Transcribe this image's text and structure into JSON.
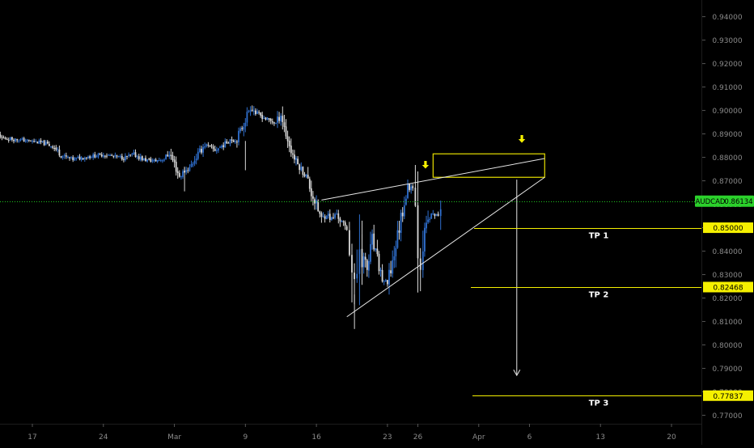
{
  "colors": {
    "background": "#000000",
    "candle_up": "#2f6fce",
    "candle_down": "#d9d9d9",
    "trendline": "#e6e6e6",
    "target_line": "#f5f000",
    "zone_border": "#e8e000",
    "arrow": "#f5f000",
    "price_line": "#1ec41e",
    "axis_text": "#8a8a8a",
    "symbol_tag_bg": "#2bd12b",
    "target_tag_bg": "#f5f000",
    "tag_text": "#000000"
  },
  "chart_data": {
    "type": "candlestick",
    "symbol": "AUDCAD",
    "last_price": 0.86134,
    "y_axis": {
      "range": [
        0.7657,
        0.9447
      ],
      "ticks": [
        "0.94000",
        "0.93000",
        "0.92000",
        "0.91000",
        "0.90000",
        "0.89000",
        "0.88000",
        "0.87000",
        "0.86000",
        "0.85000",
        "0.84000",
        "0.83000",
        "0.82000",
        "0.81000",
        "0.80000",
        "0.79000",
        "0.78000",
        "0.77000"
      ]
    },
    "x_axis": {
      "ticks": [
        {
          "label": "17",
          "date": "2020-02-17"
        },
        {
          "label": "24",
          "date": "2020-02-24"
        },
        {
          "label": "Mar",
          "date": "2020-03-02"
        },
        {
          "label": "9",
          "date": "2020-03-09"
        },
        {
          "label": "16",
          "date": "2020-03-16"
        },
        {
          "label": "23",
          "date": "2020-03-23"
        },
        {
          "label": "26",
          "date": "2020-03-26"
        },
        {
          "label": "Apr",
          "date": "2020-04-01"
        },
        {
          "label": "6",
          "date": "2020-04-06"
        },
        {
          "label": "13",
          "date": "2020-04-13"
        },
        {
          "label": "20",
          "date": "2020-04-20"
        }
      ]
    },
    "price_path": [
      [
        "2020-02-10 00:00",
        0.893
      ],
      [
        "2020-02-11 00:00",
        0.8912
      ],
      [
        "2020-02-12 00:00",
        0.8922
      ],
      [
        "2020-02-13 00:00",
        0.8905
      ],
      [
        "2020-02-14 00:00",
        0.8882
      ],
      [
        "2020-02-16 00:00",
        0.8874
      ],
      [
        "2020-02-18 00:00",
        0.8862
      ],
      [
        "2020-02-19 00:00",
        0.8848
      ],
      [
        "2020-02-20 00:00",
        0.8805
      ],
      [
        "2020-02-21 00:00",
        0.8792
      ],
      [
        "2020-02-22 00:00",
        0.88
      ],
      [
        "2020-02-24 00:00",
        0.8812
      ],
      [
        "2020-02-26 00:00",
        0.8797
      ],
      [
        "2020-02-27 00:00",
        0.8812
      ],
      [
        "2020-02-28 00:00",
        0.879
      ],
      [
        "2020-02-29 00:00",
        0.8785
      ],
      [
        "2020-03-01 00:00",
        0.8793
      ],
      [
        "2020-03-01 12:00",
        0.8818
      ],
      [
        "2020-03-02 00:00",
        0.8772
      ],
      [
        "2020-03-02 12:00",
        0.8718
      ],
      [
        "2020-03-03 00:00",
        0.8742
      ],
      [
        "2020-03-03 12:00",
        0.8755
      ],
      [
        "2020-03-04 00:00",
        0.8792
      ],
      [
        "2020-03-05 00:00",
        0.8855
      ],
      [
        "2020-03-06 00:00",
        0.883
      ],
      [
        "2020-03-07 00:00",
        0.8858
      ],
      [
        "2020-03-07 12:00",
        0.888
      ],
      [
        "2020-03-08 00:00",
        0.887
      ],
      [
        "2020-03-08 12:00",
        0.8912
      ],
      [
        "2020-03-09 00:00",
        0.8962
      ],
      [
        "2020-03-09 12:00",
        0.902
      ],
      [
        "2020-03-10 00:00",
        0.899
      ],
      [
        "2020-03-10 12:00",
        0.8978
      ],
      [
        "2020-03-11 00:00",
        0.8965
      ],
      [
        "2020-03-12 00:00",
        0.8945
      ],
      [
        "2020-03-12 12:00",
        0.8985
      ],
      [
        "2020-03-13 00:00",
        0.89
      ],
      [
        "2020-03-13 12:00",
        0.8828
      ],
      [
        "2020-03-14 00:00",
        0.878
      ],
      [
        "2020-03-15 00:00",
        0.872
      ],
      [
        "2020-03-15 12:00",
        0.865
      ],
      [
        "2020-03-16 00:00",
        0.8595
      ],
      [
        "2020-03-16 12:00",
        0.8535
      ],
      [
        "2020-03-17 00:00",
        0.856
      ],
      [
        "2020-03-17 12:00",
        0.8535
      ],
      [
        "2020-03-18 00:00",
        0.856
      ],
      [
        "2020-03-18 12:00",
        0.852
      ],
      [
        "2020-03-19 00:00",
        0.8495
      ],
      [
        "2020-03-19 06:00",
        0.843
      ],
      [
        "2020-03-19 12:00",
        0.8318
      ],
      [
        "2020-03-19 18:00",
        0.8215
      ],
      [
        "2020-03-20 00:00",
        0.8305
      ],
      [
        "2020-03-20 06:00",
        0.846
      ],
      [
        "2020-03-20 12:00",
        0.839
      ],
      [
        "2020-03-21 00:00",
        0.832
      ],
      [
        "2020-03-21 12:00",
        0.844
      ],
      [
        "2020-03-22 00:00",
        0.836
      ],
      [
        "2020-03-22 12:00",
        0.828
      ],
      [
        "2020-03-23 00:00",
        0.8255
      ],
      [
        "2020-03-23 12:00",
        0.8355
      ],
      [
        "2020-03-24 00:00",
        0.8465
      ],
      [
        "2020-03-24 12:00",
        0.8585
      ],
      [
        "2020-03-25 00:00",
        0.8665
      ],
      [
        "2020-03-25 12:00",
        0.868
      ],
      [
        "2020-03-25 18:00",
        0.859
      ],
      [
        "2020-03-26 00:00",
        0.845
      ],
      [
        "2020-03-26 06:00",
        0.8375
      ],
      [
        "2020-03-26 12:00",
        0.845
      ],
      [
        "2020-03-27 00:00",
        0.853
      ],
      [
        "2020-03-27 12:00",
        0.856
      ],
      [
        "2020-03-28 00:00",
        0.8545
      ],
      [
        "2020-03-28 06:00",
        0.8615
      ]
    ],
    "annotations": {
      "resistance_zone": {
        "from": "2020-03-27 12:00",
        "to": "2020-04-07 12:00",
        "price_low": 0.8715,
        "price_high": 0.8815
      },
      "upper_trendline": {
        "from": [
          "2020-03-16 12:00",
          0.8618
        ],
        "to": [
          "2020-04-07 12:00",
          0.8795
        ]
      },
      "lower_trendline": {
        "from": [
          "2020-03-19 00:00",
          0.812
        ],
        "to": [
          "2020-04-07 12:00",
          0.8715
        ]
      },
      "projection_arrow": {
        "date": "2020-04-04 18:00",
        "from_price": 0.8705,
        "to_price": 0.787
      },
      "down_arrows": [
        {
          "date": "2020-03-26 18:00",
          "price": 0.8785
        },
        {
          "date": "2020-04-05 06:00",
          "price": 0.8895
        }
      ],
      "targets": [
        {
          "label": "TP 1",
          "price": 0.85,
          "price_label": "0.85000"
        },
        {
          "label": "TP 2",
          "price": 0.82468,
          "price_label": "0.82468"
        },
        {
          "label": "TP 3",
          "price": 0.77837,
          "price_label": "0.77837"
        }
      ]
    }
  }
}
